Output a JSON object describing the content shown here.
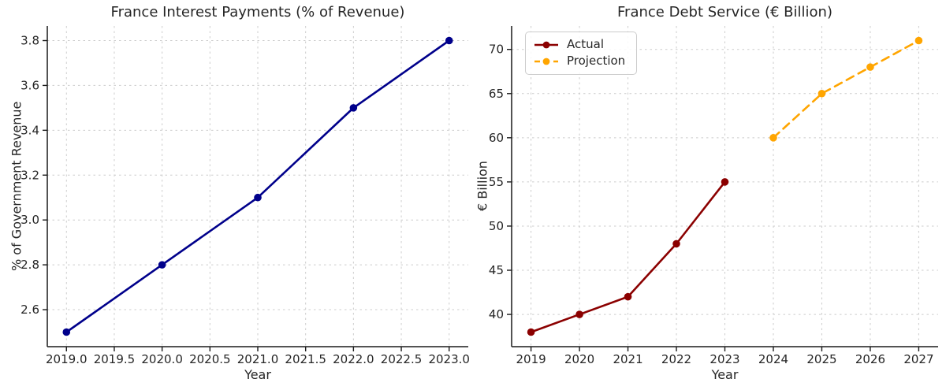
{
  "figure": {
    "background": "#ffffff",
    "text_color": "#262626",
    "spine_color": "#1a1a1a",
    "grid_color": "#cccccc"
  },
  "chart_data": [
    {
      "type": "line",
      "title": "France Interest Payments (% of Revenue)",
      "xlabel": "Year",
      "ylabel": "% of Government Revenue",
      "grid": true,
      "legend": null,
      "xlim": [
        2018.8,
        2023.2
      ],
      "ylim": [
        2.435,
        3.865
      ],
      "x_tick_values": [
        2019.0,
        2019.5,
        2020.0,
        2020.5,
        2021.0,
        2021.5,
        2022.0,
        2022.5,
        2023.0
      ],
      "x_tick_labels": [
        "2019.0",
        "2019.5",
        "2020.0",
        "2020.5",
        "2021.0",
        "2021.5",
        "2022.0",
        "2022.5",
        "2023.0"
      ],
      "y_tick_values": [
        2.6,
        2.8,
        3.0,
        3.2,
        3.4,
        3.6,
        3.8
      ],
      "y_tick_labels": [
        "2.6",
        "2.8",
        "3.0",
        "3.2",
        "3.4",
        "3.6",
        "3.8"
      ],
      "series": [
        {
          "id": "interest-payments",
          "x": [
            2019,
            2020,
            2021,
            2022,
            2023
          ],
          "values": [
            2.5,
            2.8,
            3.1,
            3.5,
            3.8
          ],
          "color": "#00008B",
          "line_style": "solid",
          "marker": "circle"
        }
      ]
    },
    {
      "type": "line",
      "title": "France Debt Service (€ Billion)",
      "xlabel": "Year",
      "ylabel": "€ Billion",
      "grid": true,
      "legend": {
        "position": "upper left"
      },
      "xlim": [
        2018.6,
        2027.4
      ],
      "ylim": [
        36.35,
        72.65
      ],
      "x_tick_values": [
        2019,
        2020,
        2021,
        2022,
        2023,
        2024,
        2025,
        2026,
        2027
      ],
      "x_tick_labels": [
        "2019",
        "2020",
        "2021",
        "2022",
        "2023",
        "2024",
        "2025",
        "2026",
        "2027"
      ],
      "y_tick_values": [
        40,
        45,
        50,
        55,
        60,
        65,
        70
      ],
      "y_tick_labels": [
        "40",
        "45",
        "50",
        "55",
        "60",
        "65",
        "70"
      ],
      "series": [
        {
          "id": "actual",
          "name": "Actual",
          "x": [
            2019,
            2020,
            2021,
            2022,
            2023
          ],
          "values": [
            38,
            40,
            42,
            48,
            55
          ],
          "color": "#8B0000",
          "line_style": "solid",
          "marker": "circle"
        },
        {
          "id": "projection",
          "name": "Projection",
          "x": [
            2024,
            2025,
            2026,
            2027
          ],
          "values": [
            60,
            65,
            68,
            71
          ],
          "color": "#FFA500",
          "line_style": "dashed",
          "marker": "circle"
        }
      ]
    }
  ]
}
